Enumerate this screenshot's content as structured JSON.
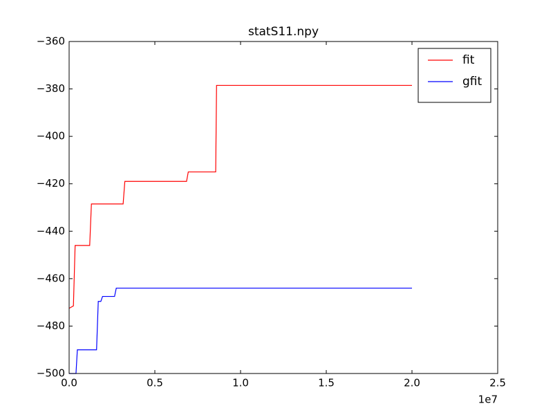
{
  "chart_data": {
    "type": "line",
    "title": "statS11.npy",
    "x_offset_label": "1e7",
    "xlim": [
      0,
      2.5
    ],
    "xticks": [
      {
        "value": 0,
        "label": "0.0"
      },
      0.5,
      {
        "value": 1,
        "label": "1.0"
      },
      1.5,
      {
        "value": 2,
        "label": "2.0"
      },
      2.5
    ],
    "ylim": [
      -500,
      -360
    ],
    "yticks": [
      {
        "value": -500,
        "label": "−500"
      },
      {
        "value": -480,
        "label": "−480"
      },
      {
        "value": -460,
        "label": "−460"
      },
      {
        "value": -440,
        "label": "−440"
      },
      {
        "value": -420,
        "label": "−420"
      },
      {
        "value": -400,
        "label": "−400"
      },
      {
        "value": -380,
        "label": "−380"
      },
      {
        "value": -360,
        "label": "−360"
      }
    ],
    "grid": false,
    "legend": "upper right",
    "series": [
      {
        "name": "fit",
        "color": "#ff0000",
        "x": [
          0,
          0.025,
          0.035,
          0.12,
          0.13,
          0.315,
          0.325,
          0.685,
          0.695,
          0.855,
          0.86,
          2.0
        ],
        "values": [
          -472.5,
          -471.5,
          -446,
          -446,
          -428.5,
          -428.5,
          -419,
          -419,
          -415,
          -415,
          -378.5,
          -378.5
        ]
      },
      {
        "name": "gfit",
        "color": "#0000ff",
        "x": [
          0,
          0.04,
          0.048,
          0.16,
          0.17,
          0.185,
          0.195,
          0.265,
          0.275,
          2.0
        ],
        "values": [
          -500,
          -500,
          -490,
          -490,
          -469.6,
          -469.6,
          -467.5,
          -467.5,
          -464,
          -464
        ]
      }
    ]
  }
}
